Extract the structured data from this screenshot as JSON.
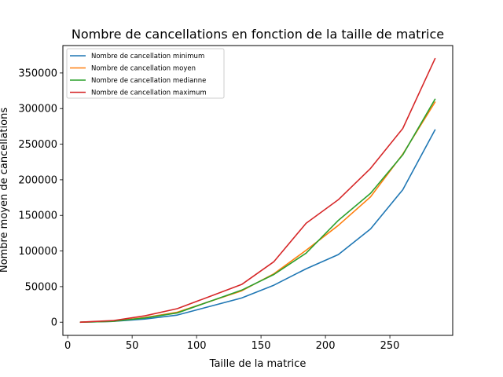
{
  "chart_data": {
    "type": "line",
    "title": "Nombre de cancellations en fonction de la taille de matrice",
    "xlabel": "Taille de la matrice",
    "ylabel": "Nombre moyen de cancellations",
    "xlim": [
      -3.75,
      298.75
    ],
    "ylim": [
      -18500,
      388500
    ],
    "xticks": [
      0,
      50,
      100,
      150,
      200,
      250
    ],
    "yticks": [
      0,
      50000,
      100000,
      150000,
      200000,
      250000,
      300000,
      350000
    ],
    "x": [
      10,
      20,
      35,
      60,
      85,
      110,
      135,
      160,
      185,
      210,
      235,
      260,
      285
    ],
    "series": [
      {
        "name": "Nombre de cancellation minimum",
        "color": "#1f77b4",
        "values": [
          0,
          400,
          1100,
          4500,
          10000,
          22000,
          34000,
          52000,
          75000,
          95000,
          131000,
          186000,
          270000
        ]
      },
      {
        "name": "Nombre de cancellation moyen",
        "color": "#ff7f0e",
        "values": [
          0,
          600,
          1300,
          6500,
          14000,
          29000,
          44000,
          68000,
          101000,
          136000,
          176000,
          236000,
          309000
        ]
      },
      {
        "name": "Nombre de cancellation medianne",
        "color": "#2ca02c",
        "values": [
          0,
          500,
          1200,
          6000,
          13000,
          29000,
          45000,
          67000,
          97000,
          143000,
          181000,
          235000,
          313000
        ]
      },
      {
        "name": "Nombre de cancellation maximum",
        "color": "#d62728",
        "values": [
          0,
          1000,
          2200,
          9000,
          19000,
          36000,
          53000,
          85000,
          139000,
          172000,
          216000,
          272000,
          370000
        ]
      }
    ],
    "grid": false,
    "legend": "top-left"
  }
}
